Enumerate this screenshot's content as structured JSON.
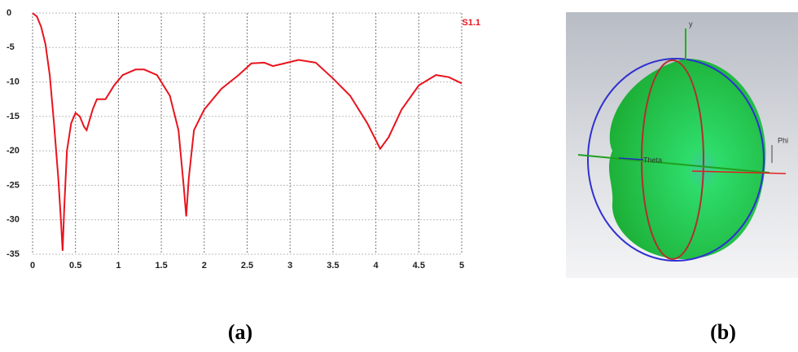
{
  "chart_data": {
    "type": "line",
    "x": [
      0,
      0.05,
      0.1,
      0.15,
      0.2,
      0.25,
      0.3,
      0.33,
      0.35,
      0.37,
      0.4,
      0.45,
      0.5,
      0.55,
      0.6,
      0.63,
      0.7,
      0.75,
      0.85,
      0.95,
      1.05,
      1.2,
      1.3,
      1.45,
      1.6,
      1.7,
      1.76,
      1.79,
      1.82,
      1.88,
      2.0,
      2.2,
      2.4,
      2.55,
      2.7,
      2.8,
      2.9,
      3.1,
      3.3,
      3.5,
      3.7,
      3.9,
      4.05,
      4.15,
      4.3,
      4.5,
      4.7,
      4.85,
      5.0
    ],
    "series": [
      {
        "name": "S1.1",
        "color": "#e8141e",
        "values": [
          0,
          -0.5,
          -2,
          -4.5,
          -9,
          -16,
          -24,
          -30,
          -34.5,
          -28,
          -20,
          -16,
          -14.5,
          -15,
          -16.5,
          -17,
          -14,
          -12.5,
          -12.5,
          -10.5,
          -9,
          -8.2,
          -8.2,
          -9,
          -12,
          -17,
          -25,
          -29.5,
          -24,
          -17,
          -14,
          -11,
          -9,
          -7.3,
          -7.2,
          -7.7,
          -7.4,
          -6.8,
          -7.2,
          -9.5,
          -12,
          -16,
          -19.7,
          -18,
          -14,
          -10.5,
          -9,
          -9.3,
          -10.2
        ]
      }
    ],
    "xlim": [
      0,
      5
    ],
    "ylim": [
      -35,
      0
    ],
    "xticks": [
      0,
      0.5,
      1,
      1.5,
      2,
      2.5,
      3,
      3.5,
      4,
      4.5,
      5
    ],
    "yticks": [
      0,
      -5,
      -10,
      -15,
      -20,
      -25,
      -30,
      -35
    ],
    "grid": true
  },
  "panels": {
    "a": "(a)",
    "b": "(b)"
  },
  "pattern_labels": {
    "y_axis": "y",
    "theta": "Theta",
    "phi": "Phi"
  }
}
